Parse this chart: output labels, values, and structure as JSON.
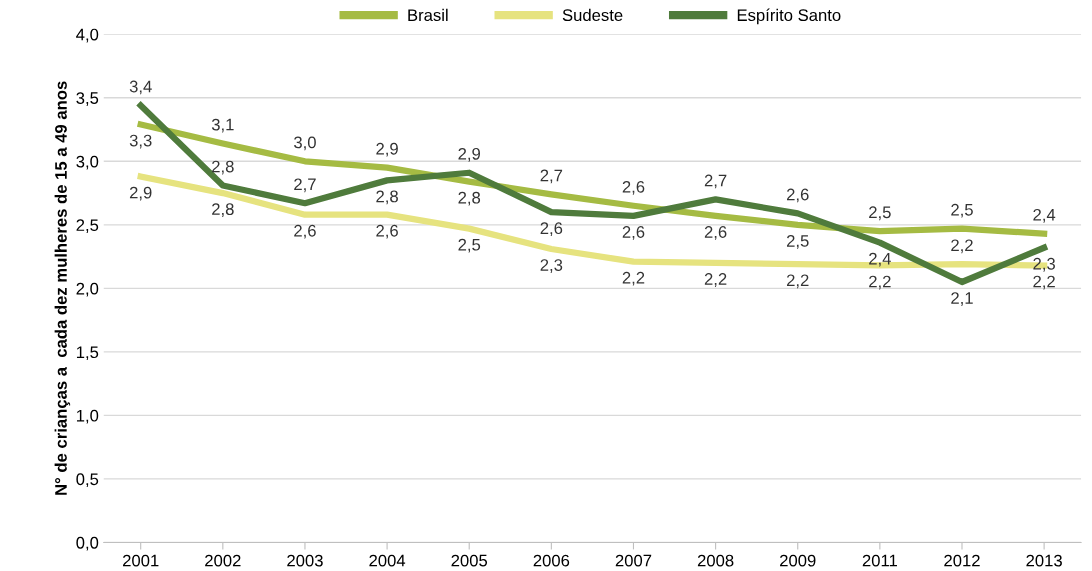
{
  "chart_data": {
    "type": "line",
    "ylabel": "N° de crianças a  cada dez mulheres de 15 a 49 anos",
    "categories": [
      "2001",
      "2002",
      "2003",
      "2004",
      "2005",
      "2006",
      "2007",
      "2008",
      "2009",
      "2011",
      "2012",
      "2013"
    ],
    "series": [
      {
        "name": "Brasil",
        "color": "#a5bb43",
        "values": [
          3.29,
          3.14,
          3.0,
          2.95,
          2.84,
          2.74,
          2.65,
          2.57,
          2.5,
          2.45,
          2.47,
          2.43
        ],
        "value_labels": [
          "3,3",
          "3,1",
          "3,0",
          "2,9",
          "2,8",
          "2,7",
          "2,6",
          "2,6",
          "2,5",
          "2,5",
          "2,5",
          "2,4"
        ]
      },
      {
        "name": "Sudeste",
        "color": "#e6e37f",
        "values": [
          2.88,
          2.75,
          2.58,
          2.58,
          2.47,
          2.31,
          2.21,
          2.2,
          2.19,
          2.18,
          2.19,
          2.18
        ],
        "value_labels": [
          "2,9",
          "2,8",
          "2,6",
          "2,6",
          "2,5",
          "2,3",
          "2,2",
          "2,2",
          "2,2",
          "2,2",
          "2,2",
          "2,2"
        ]
      },
      {
        "name": "Espírito Santo",
        "color": "#4f7b3c",
        "values": [
          3.44,
          2.81,
          2.67,
          2.85,
          2.91,
          2.6,
          2.57,
          2.7,
          2.59,
          2.36,
          2.05,
          2.32
        ],
        "value_labels": [
          "3,4",
          "2,8",
          "2,7",
          "2,8",
          "2,9",
          "2,6",
          "2,6",
          "2,7",
          "2,6",
          "2,4",
          "2,1",
          "2,3"
        ]
      }
    ],
    "ylim": [
      0,
      4
    ],
    "yticks": [
      {
        "value": 0,
        "label": "0,0"
      },
      {
        "value": 0.5,
        "label": "0,5"
      },
      {
        "value": 1,
        "label": "1,0"
      },
      {
        "value": 1.5,
        "label": "1,5"
      },
      {
        "value": 2,
        "label": "2,0"
      },
      {
        "value": 2.5,
        "label": "2,5"
      },
      {
        "value": 3,
        "label": "3,0"
      },
      {
        "value": 3.5,
        "label": "3,5"
      },
      {
        "value": 4,
        "label": "4,0"
      }
    ],
    "grid": "y",
    "legend": "top",
    "marker": "none",
    "line_style": "solid"
  }
}
